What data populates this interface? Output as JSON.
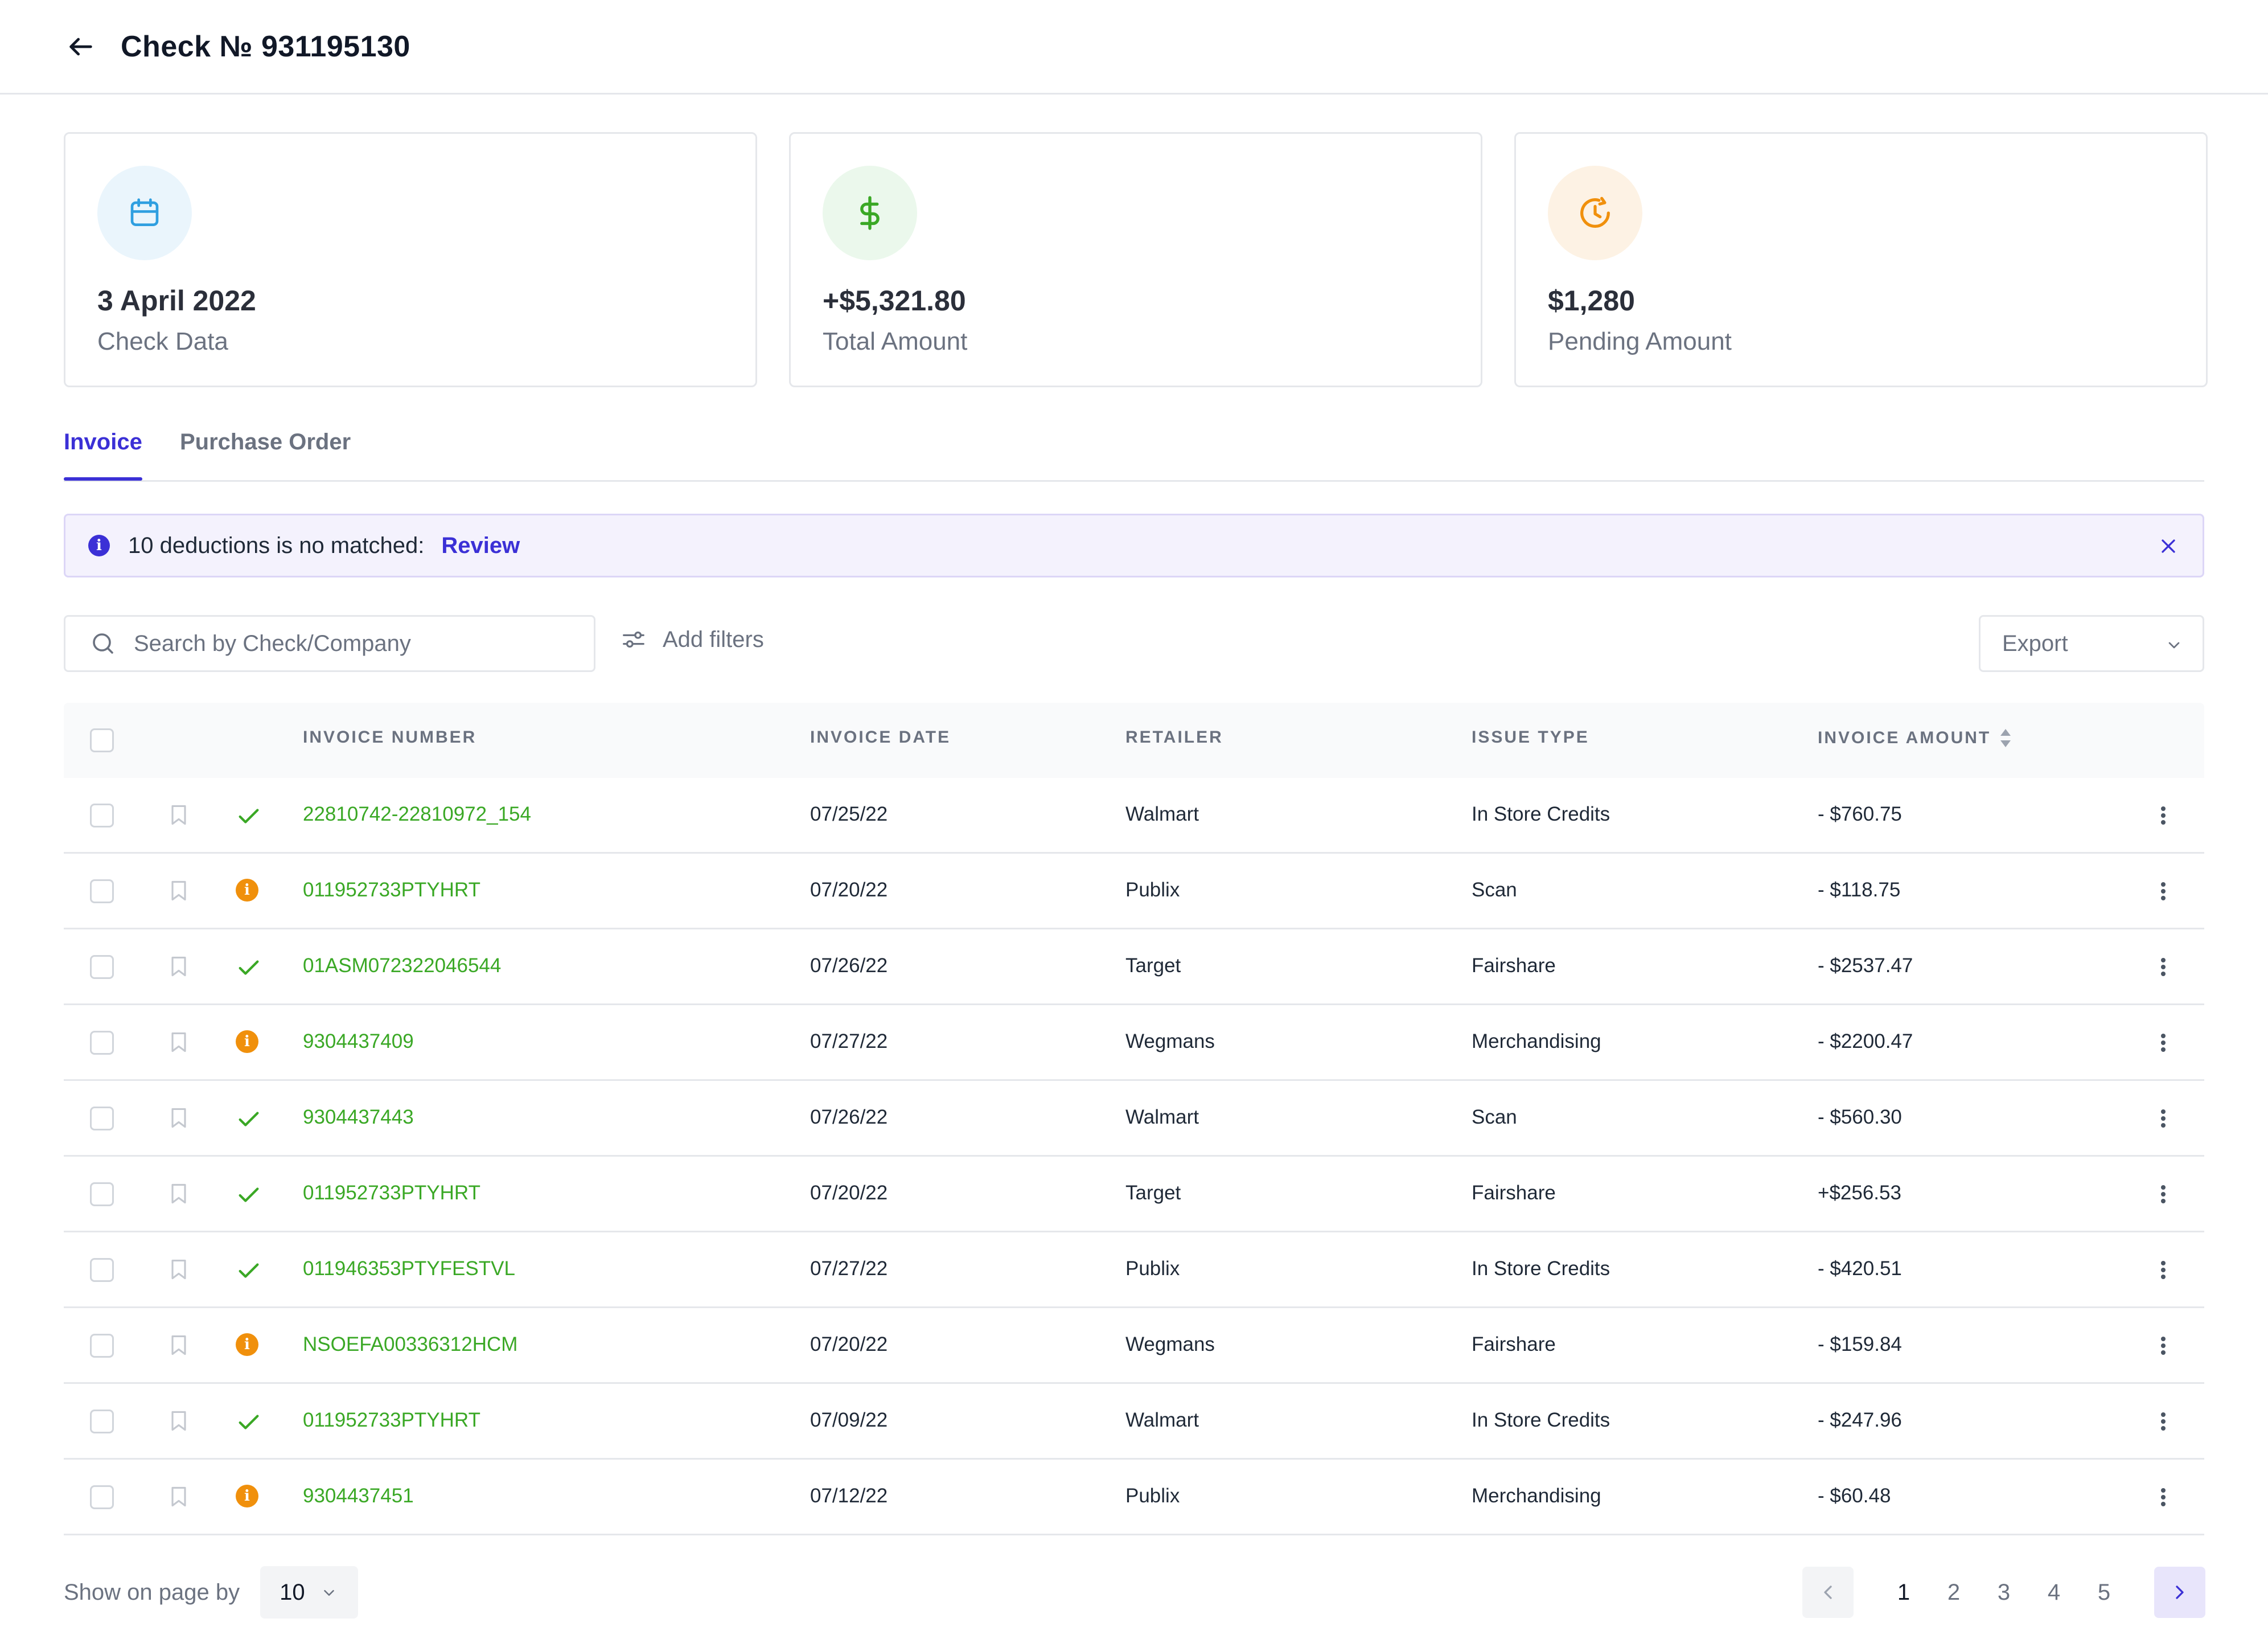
{
  "header": {
    "title": "Check № 931195130",
    "back_icon": "arrow-left-icon"
  },
  "cards": [
    {
      "value": "3 April 2022",
      "label": "Check Data",
      "icon": "calendar-icon",
      "icon_color": "#2f9fe0",
      "bg_color": "#eaf5fc"
    },
    {
      "value": "+$5,321.80",
      "label": "Total Amount",
      "icon": "dollar-icon",
      "icon_color": "#3aa825",
      "bg_color": "#ebf8ec"
    },
    {
      "value": "$1,280",
      "label": "Pending Amount",
      "icon": "clock-icon",
      "icon_color": "#f0900c",
      "bg_color": "#fdf2e4"
    }
  ],
  "tabs": [
    {
      "label": "Invoice",
      "active": true
    },
    {
      "label": "Purchase Order",
      "active": false
    }
  ],
  "alert": {
    "message": "10 deductions is no matched:",
    "action": "Review"
  },
  "toolbar": {
    "search_placeholder": "Search by Check/Company",
    "filters_label": "Add filters",
    "export_label": "Export"
  },
  "table": {
    "columns": [
      "INVOICE NUMBER",
      "INVOICE DATE",
      "RETAILER",
      "ISSUE TYPE",
      "INVOICE AMOUNT"
    ],
    "rows": [
      {
        "status": "matched",
        "invoice": "22810742-22810972_154",
        "date": "07/25/22",
        "retailer": "Walmart",
        "issue": "In Store Credits",
        "amount": "- $760.75"
      },
      {
        "status": "pending",
        "invoice": "011952733PTYHRT",
        "date": "07/20/22",
        "retailer": "Publix",
        "issue": "Scan",
        "amount": "- $118.75"
      },
      {
        "status": "matched",
        "invoice": "01ASM072322046544",
        "date": "07/26/22",
        "retailer": "Target",
        "issue": "Fairshare",
        "amount": "- $2537.47"
      },
      {
        "status": "pending",
        "invoice": "9304437409",
        "date": "07/27/22",
        "retailer": "Wegmans",
        "issue": "Merchandising",
        "amount": "- $2200.47"
      },
      {
        "status": "matched",
        "invoice": "9304437443",
        "date": "07/26/22",
        "retailer": "Walmart",
        "issue": "Scan",
        "amount": "- $560.30"
      },
      {
        "status": "matched",
        "invoice": "011952733PTYHRT",
        "date": "07/20/22",
        "retailer": "Target",
        "issue": "Fairshare",
        "amount": "+$256.53"
      },
      {
        "status": "matched",
        "invoice": "011946353PTYFESTVL",
        "date": "07/27/22",
        "retailer": "Publix",
        "issue": "In Store Credits",
        "amount": "- $420.51"
      },
      {
        "status": "pending",
        "invoice": "NSOEFA00336312HCM",
        "date": "07/20/22",
        "retailer": "Wegmans",
        "issue": "Fairshare",
        "amount": "- $159.84"
      },
      {
        "status": "matched",
        "invoice": "011952733PTYHRT",
        "date": "07/09/22",
        "retailer": "Walmart",
        "issue": "In Store Credits",
        "amount": "- $247.96"
      },
      {
        "status": "pending",
        "invoice": "9304437451",
        "date": "07/12/22",
        "retailer": "Publix",
        "issue": "Merchandising",
        "amount": "- $60.48"
      }
    ]
  },
  "pagination": {
    "show_label": "Show on page by",
    "page_size": "10",
    "pages": [
      "1",
      "2",
      "3",
      "4",
      "5"
    ],
    "current": "1"
  },
  "colors": {
    "accent": "#3b30d6",
    "success": "#3aa825",
    "warning": "#f0900c"
  }
}
